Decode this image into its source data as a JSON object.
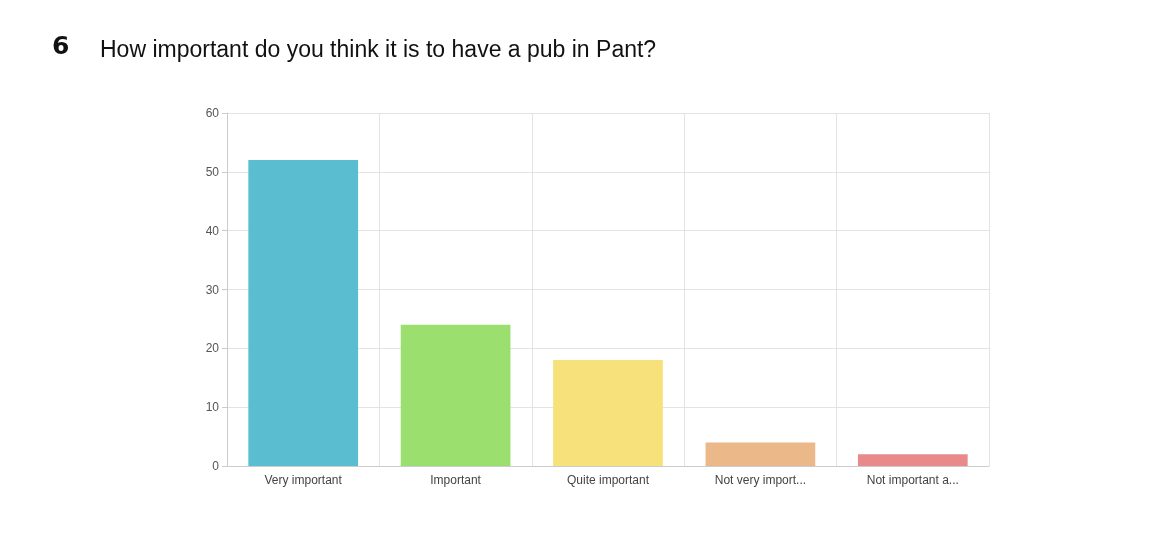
{
  "chart_data": {
    "type": "bar",
    "title": "How important do you think it is to have a pub in Pant?",
    "annotations": [
      "6"
    ],
    "categories": [
      "Very important",
      "Important",
      "Quite important",
      "Not very import...",
      "Not important a..."
    ],
    "values": [
      52,
      24,
      18,
      4,
      2
    ],
    "colors": [
      "#5bbdd0",
      "#9be06f",
      "#f7e17a",
      "#ebb88a",
      "#e88a8a"
    ],
    "ylim": [
      0,
      60
    ],
    "yticks": [
      0,
      10,
      20,
      30,
      40,
      50,
      60
    ],
    "grid": true
  }
}
